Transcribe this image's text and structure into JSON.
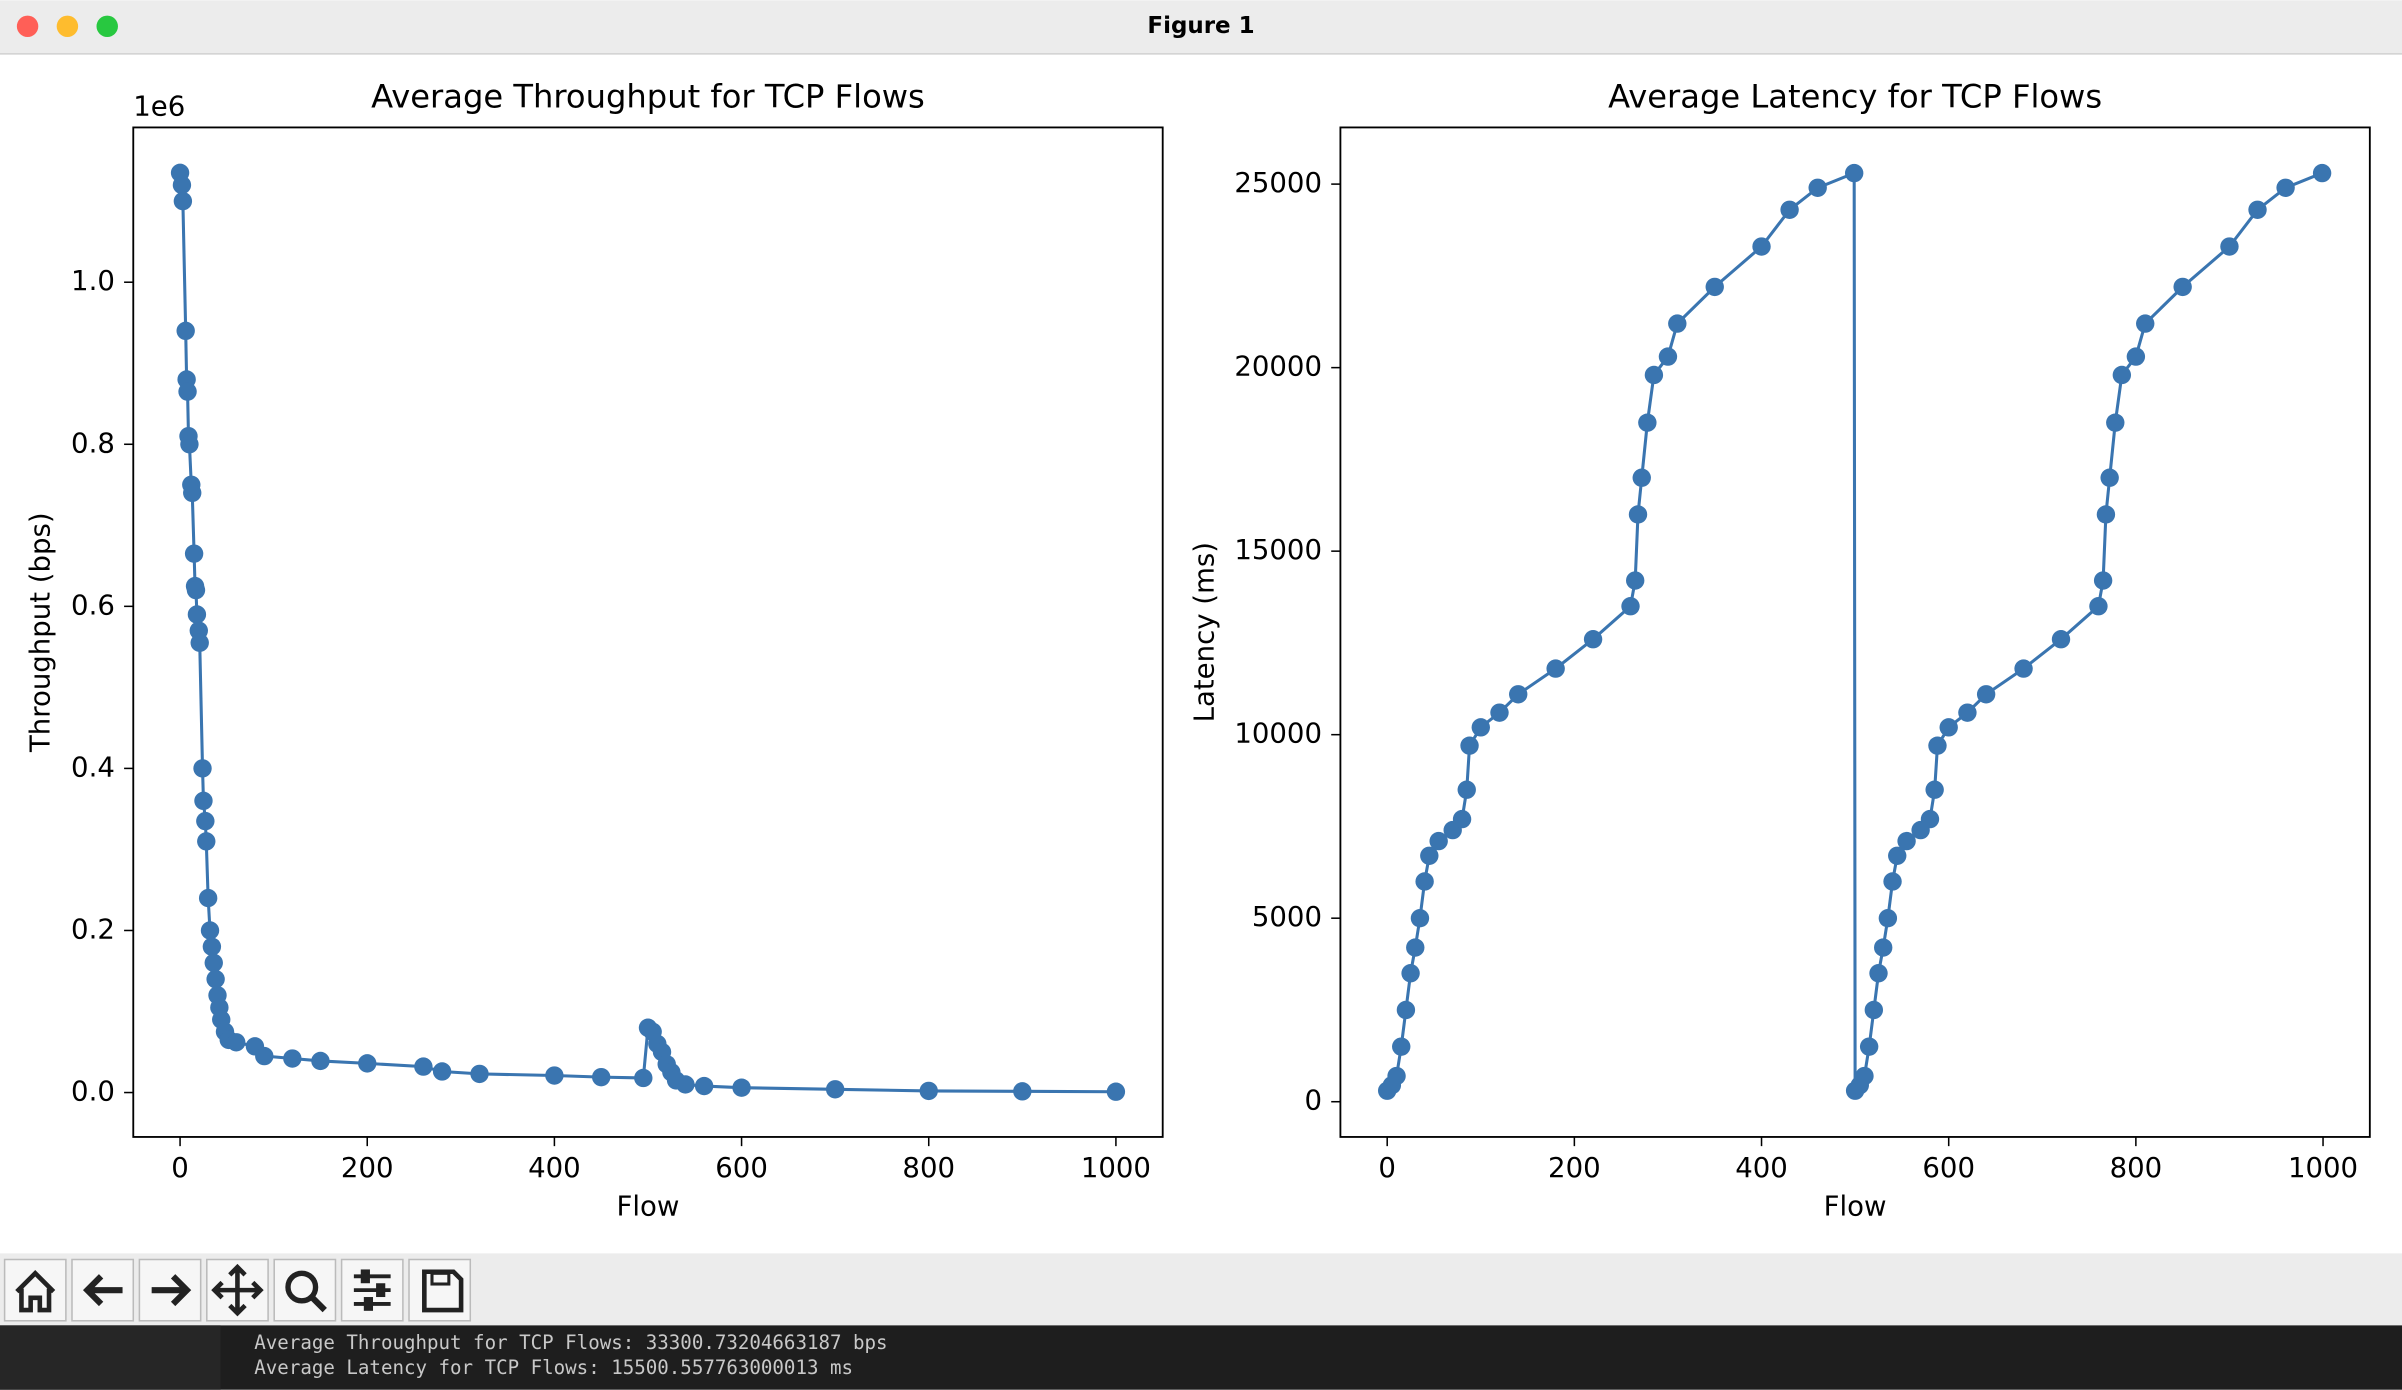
{
  "window": {
    "title": "Figure 1"
  },
  "chart_data": [
    {
      "type": "line",
      "title": "Average Throughput for TCP Flows",
      "xlabel": "Flow",
      "ylabel": "Throughput (bps)",
      "y_offset_label": "1e6",
      "color": "#3a75b0",
      "x": [
        0,
        2,
        3,
        6,
        7,
        8,
        9,
        10,
        12,
        13,
        15,
        16,
        17,
        18,
        20,
        21,
        24,
        25,
        27,
        28,
        30,
        32,
        34,
        36,
        38,
        40,
        42,
        44,
        48,
        52,
        60,
        80,
        90,
        120,
        150,
        200,
        260,
        280,
        320,
        400,
        450,
        495,
        500,
        505,
        510,
        515,
        520,
        525,
        530,
        540,
        560,
        600,
        700,
        800,
        900,
        1000
      ],
      "values": [
        1.135,
        1.12,
        1.1,
        0.94,
        0.88,
        0.865,
        0.81,
        0.8,
        0.75,
        0.74,
        0.665,
        0.625,
        0.62,
        0.59,
        0.57,
        0.555,
        0.4,
        0.36,
        0.335,
        0.31,
        0.24,
        0.2,
        0.18,
        0.16,
        0.14,
        0.12,
        0.105,
        0.09,
        0.075,
        0.065,
        0.062,
        0.057,
        0.045,
        0.042,
        0.039,
        0.036,
        0.032,
        0.026,
        0.023,
        0.021,
        0.019,
        0.018,
        0.08,
        0.075,
        0.06,
        0.05,
        0.035,
        0.025,
        0.015,
        0.01,
        0.008,
        0.006,
        0.004,
        0.002,
        0.0015,
        0.001
      ],
      "xlim": [
        -50,
        1050
      ],
      "xticks": [
        0,
        200,
        400,
        600,
        800,
        1000
      ],
      "ylim": [
        -0.0548,
        1.191
      ],
      "yticks": [
        {
          "value": 0,
          "label": "0.0"
        },
        0.2,
        0.4,
        0.6,
        0.8,
        {
          "value": 1,
          "label": "1.0"
        }
      ]
    },
    {
      "type": "line",
      "title": "Average Latency for TCP Flows",
      "xlabel": "Flow",
      "ylabel": "Latency (ms)",
      "color": "#3a75b0",
      "x": [
        0,
        5,
        10,
        15,
        20,
        25,
        30,
        35,
        40,
        45,
        55,
        70,
        80,
        85,
        88,
        100,
        120,
        140,
        180,
        220,
        260,
        265,
        268,
        272,
        278,
        285,
        300,
        310,
        350,
        400,
        430,
        460,
        499,
        500,
        505,
        510,
        515,
        520,
        525,
        530,
        535,
        540,
        545,
        555,
        570,
        580,
        585,
        588,
        600,
        620,
        640,
        680,
        720,
        760,
        765,
        768,
        772,
        778,
        785,
        800,
        810,
        850,
        900,
        930,
        960,
        999
      ],
      "values": [
        300,
        450,
        700,
        1500,
        2500,
        3500,
        4200,
        5000,
        6000,
        6700,
        7100,
        7400,
        7700,
        8500,
        9700,
        10200,
        10600,
        11100,
        11800,
        12600,
        13500,
        14200,
        16000,
        17000,
        18500,
        19800,
        20300,
        21200,
        22200,
        23300,
        24300,
        24900,
        25300,
        300,
        450,
        700,
        1500,
        2500,
        3500,
        4200,
        5000,
        6000,
        6700,
        7100,
        7400,
        7700,
        8500,
        9700,
        10200,
        10600,
        11100,
        11800,
        12600,
        13500,
        14200,
        16000,
        17000,
        18500,
        19800,
        20300,
        21200,
        22200,
        23300,
        24300,
        24900,
        25300
      ],
      "xlim": [
        -50,
        1050
      ],
      "xticks": [
        0,
        200,
        400,
        600,
        800,
        1000
      ],
      "ylim": [
        -960,
        26544
      ],
      "yticks": [
        0,
        5000,
        10000,
        15000,
        20000,
        25000
      ]
    }
  ],
  "terminal": {
    "lines": [
      "Average Throughput for TCP Flows: 33300.73204663187 bps",
      "Average Latency for TCP Flows: 15500.557763000013 ms"
    ]
  }
}
